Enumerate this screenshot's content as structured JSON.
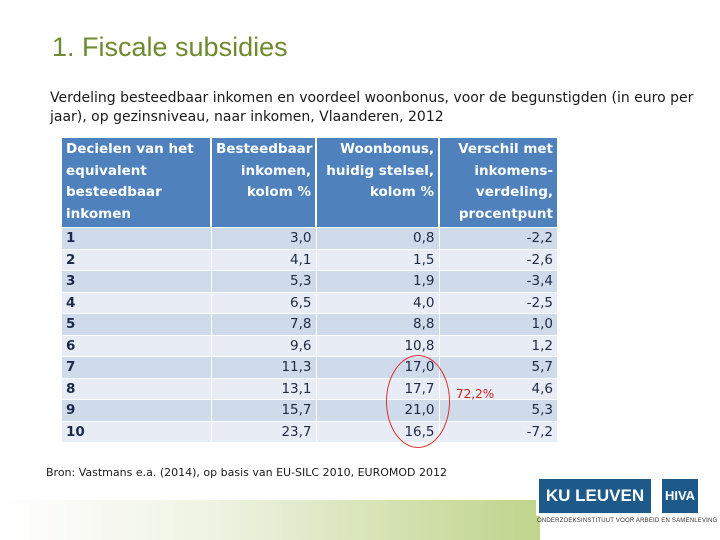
{
  "title": "1. Fiscale subsidies",
  "subtitle": "Verdeling besteedbaar inkomen en voordeel woonbonus, voor de begunstigden (in euro per jaar), op gezinsniveau, naar inkomen, Vlaanderen, 2012",
  "table": {
    "headers": [
      "Decielen van het equivalent besteedbaar inkomen",
      "Besteedbaar inkomen, kolom %",
      "Woonbonus, huidig stelsel, kolom %",
      "Verschil met inkomens-verdeling, procentpunt"
    ],
    "rows": [
      [
        "1",
        "3,0",
        "0,8",
        "-2,2"
      ],
      [
        "2",
        "4,1",
        "1,5",
        "-2,6"
      ],
      [
        "3",
        "5,3",
        "1,9",
        "-3,4"
      ],
      [
        "4",
        "6,5",
        "4,0",
        "-2,5"
      ],
      [
        "5",
        "7,8",
        "8,8",
        "1,0"
      ],
      [
        "6",
        "9,6",
        "10,8",
        "1,2"
      ],
      [
        "7",
        "11,3",
        "17,0",
        "5,7"
      ],
      [
        "8",
        "13,1",
        "17,7",
        "4,6"
      ],
      [
        "9",
        "15,7",
        "21,0",
        "5,3"
      ],
      [
        "10",
        "23,7",
        "16,5",
        "-7,2"
      ]
    ]
  },
  "annotation": "72,2%",
  "source": "Bron: Vastmans e.a. (2014), op basis van EU-SILC 2010, EUROMOD 2012",
  "logos": {
    "ku_leuven": "KU LEUVEN",
    "hiva": "HIVA",
    "caption": "ONDERZOEKSINSTITUUT VOOR ARBEID EN SAMENLEVING"
  },
  "colors": {
    "title": "#6e8a2e",
    "header_bg": "#4f81bd",
    "row_even": "#cfdaea",
    "row_odd": "#e8edf5",
    "highlight": "#e03030",
    "logo_bg": "#1d5a8a"
  }
}
